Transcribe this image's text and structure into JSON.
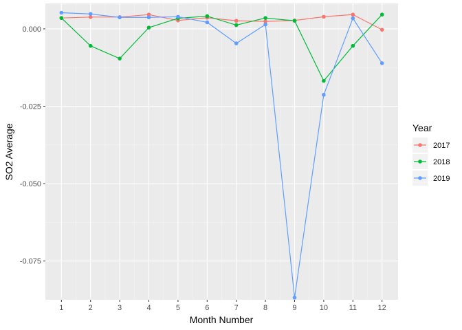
{
  "chart_data": {
    "type": "line",
    "xlabel": "Month Number",
    "ylabel": "SO2 Average",
    "x": [
      1,
      2,
      3,
      4,
      5,
      6,
      7,
      8,
      9,
      10,
      11,
      12
    ],
    "xlim": [
      0.45,
      12.55
    ],
    "ylim": [
      -0.0875,
      0.0082
    ],
    "x_ticks": [
      "1",
      "2",
      "3",
      "4",
      "5",
      "6",
      "7",
      "8",
      "9",
      "10",
      "11",
      "12"
    ],
    "y_ticks": [
      {
        "value": 0.0,
        "label": "0.000"
      },
      {
        "value": -0.025,
        "label": "-0.025"
      },
      {
        "value": -0.05,
        "label": "-0.050"
      },
      {
        "value": -0.075,
        "label": "-0.075"
      }
    ],
    "grid": true,
    "legend": {
      "title": "Year",
      "position": "right"
    },
    "series": [
      {
        "name": "2017",
        "color": "#F8766D",
        "values": [
          0.0035,
          0.0038,
          0.0038,
          0.0046,
          0.0027,
          0.0036,
          0.0026,
          0.0024,
          0.0027,
          0.0039,
          0.0046,
          -0.0003
        ]
      },
      {
        "name": "2018",
        "color": "#00BA38",
        "values": [
          0.0035,
          -0.0055,
          -0.0096,
          0.0004,
          0.0034,
          0.0041,
          0.0012,
          0.0035,
          0.0026,
          -0.0168,
          -0.0055,
          0.0046
        ]
      },
      {
        "name": "2019",
        "color": "#619CFF",
        "values": [
          0.0052,
          0.0048,
          0.0037,
          0.0037,
          0.0039,
          0.0021,
          -0.0047,
          0.0014,
          -0.0868,
          -0.0213,
          0.0034,
          -0.0111
        ]
      }
    ]
  }
}
